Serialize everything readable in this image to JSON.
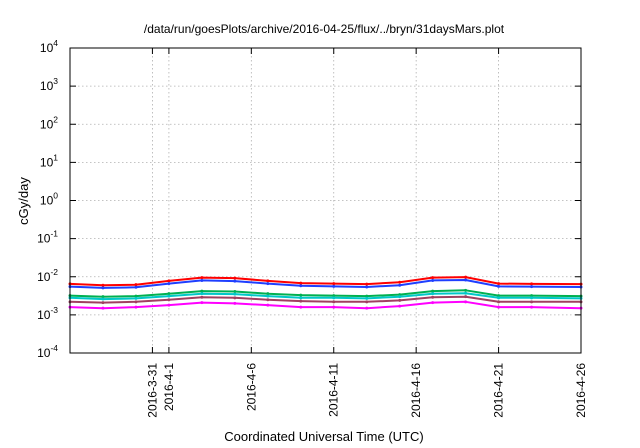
{
  "chart_data": {
    "type": "line",
    "title": "/data/run/goesPlots/archive/2016-04-25/flux/../bryn/31daysMars.plot",
    "xlabel": "Coordinated Universal Time (UTC)",
    "ylabel": "cGy/day",
    "yscale": "log",
    "ylim": [
      0.0001,
      10000
    ],
    "y_ticks": [
      {
        "base": "10",
        "exp": "-4"
      },
      {
        "base": "10",
        "exp": "-3"
      },
      {
        "base": "10",
        "exp": "-2"
      },
      {
        "base": "10",
        "exp": "-1"
      },
      {
        "base": "10",
        "exp": "0"
      },
      {
        "base": "10",
        "exp": "1"
      },
      {
        "base": "10",
        "exp": "2"
      },
      {
        "base": "10",
        "exp": "3"
      },
      {
        "base": "10",
        "exp": "4"
      }
    ],
    "xlim": [
      "2016-03-26",
      "2016-04-26"
    ],
    "x_ticks": [
      "2016-3-31",
      "2016-4-1",
      "2016-4-6",
      "2016-4-11",
      "2016-4-16",
      "2016-4-21",
      "2016-4-26"
    ],
    "x_tick_dates": [
      "2016-03-31",
      "2016-04-01",
      "2016-04-06",
      "2016-04-11",
      "2016-04-16",
      "2016-04-21",
      "2016-04-26"
    ],
    "grid": true,
    "legend": "none",
    "x_dates": [
      "2016-03-26",
      "2016-03-28",
      "2016-03-30",
      "2016-04-01",
      "2016-04-03",
      "2016-04-05",
      "2016-04-07",
      "2016-04-09",
      "2016-04-11",
      "2016-04-13",
      "2016-04-15",
      "2016-04-17",
      "2016-04-19",
      "2016-04-21",
      "2016-04-23",
      "2016-04-26"
    ],
    "series": [
      {
        "color": "#ff0000",
        "values": [
          0.0065,
          0.006,
          0.0062,
          0.0078,
          0.0095,
          0.0092,
          0.0078,
          0.0068,
          0.0066,
          0.0064,
          0.0072,
          0.0095,
          0.0098,
          0.0066,
          0.0065,
          0.0064
        ]
      },
      {
        "color": "#1f3fff",
        "values": [
          0.0055,
          0.0051,
          0.0053,
          0.0066,
          0.008,
          0.0077,
          0.0066,
          0.0058,
          0.0056,
          0.0054,
          0.006,
          0.008,
          0.0082,
          0.0056,
          0.0055,
          0.0054
        ]
      },
      {
        "color": "#00b050",
        "values": [
          0.0032,
          0.003,
          0.0031,
          0.0036,
          0.0042,
          0.0041,
          0.0036,
          0.0033,
          0.0032,
          0.0031,
          0.0034,
          0.0042,
          0.0044,
          0.0032,
          0.0032,
          0.0031
        ]
      },
      {
        "color": "#00c8c8",
        "values": [
          0.0028,
          0.0026,
          0.0027,
          0.0031,
          0.0036,
          0.0035,
          0.0031,
          0.0028,
          0.0028,
          0.0027,
          0.003,
          0.0036,
          0.0037,
          0.0028,
          0.0028,
          0.0027
        ]
      },
      {
        "color": "#a04060",
        "values": [
          0.0022,
          0.0021,
          0.0022,
          0.0025,
          0.0029,
          0.0028,
          0.0025,
          0.0023,
          0.0022,
          0.0022,
          0.0024,
          0.0029,
          0.003,
          0.0022,
          0.0022,
          0.0022
        ]
      },
      {
        "color": "#ff00ff",
        "values": [
          0.0016,
          0.0015,
          0.0016,
          0.0018,
          0.0021,
          0.002,
          0.0018,
          0.0016,
          0.0016,
          0.0015,
          0.0017,
          0.0021,
          0.0022,
          0.0016,
          0.0016,
          0.0015
        ]
      }
    ]
  }
}
